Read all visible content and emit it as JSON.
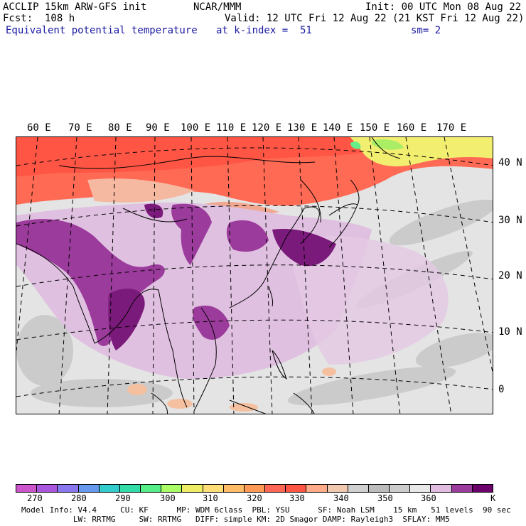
{
  "header": {
    "model": "ACCLIP 15km ARW-GFS init",
    "center": "NCAR/MMM",
    "init": "Init: 00 UTC Mon 08 Aug 22",
    "fcst": "Fcst:  108 h",
    "valid": "Valid: 12 UTC Fri 12 Aug 22 (21 KST Fri 12 Aug 22)",
    "field": "Equivalent potential temperature",
    "level": "at k-index =  51",
    "smooth": "sm= 2"
  },
  "map": {
    "lon_labels": [
      "60 E",
      "70 E",
      "80 E",
      "90 E",
      "100 E",
      "110 E",
      "120 E",
      "130 E",
      "140 E",
      "150 E",
      "160 E",
      "170 E"
    ],
    "lat_labels": [
      "40 N",
      "30 N",
      "20 N",
      "10 N",
      "0"
    ]
  },
  "colorbar": {
    "colors": [
      "#cc55cc",
      "#aa55dd",
      "#8877ee",
      "#6699ee",
      "#33cccc",
      "#33ddaa",
      "#55ee88",
      "#aaff66",
      "#eeee66",
      "#ffdd77",
      "#ffbb66",
      "#ff9955",
      "#ff6655",
      "#ff5544",
      "#ffaa88",
      "#f0c8b0",
      "#d0d0d0",
      "#bcbcbc",
      "#cccccc",
      "#e8e8e8",
      "#e0bce0",
      "#9b3b9b",
      "#6b006b"
    ],
    "tick_labels": [
      "270",
      "280",
      "290",
      "300",
      "310",
      "320",
      "330",
      "340",
      "350",
      "360"
    ],
    "unit": "K"
  },
  "model_info": {
    "line1": "Model Info: V4.4     CU: KF      MP: WDM 6class  PBL: YSU      SF: Noah LSM    15 km   51 levels  90 sec",
    "line2": "           LW: RRTMG     SW: RRTMG   DIFF: simple KM: 2D Smagor DAMP: Rayleigh3  SFLAY: MM5"
  }
}
